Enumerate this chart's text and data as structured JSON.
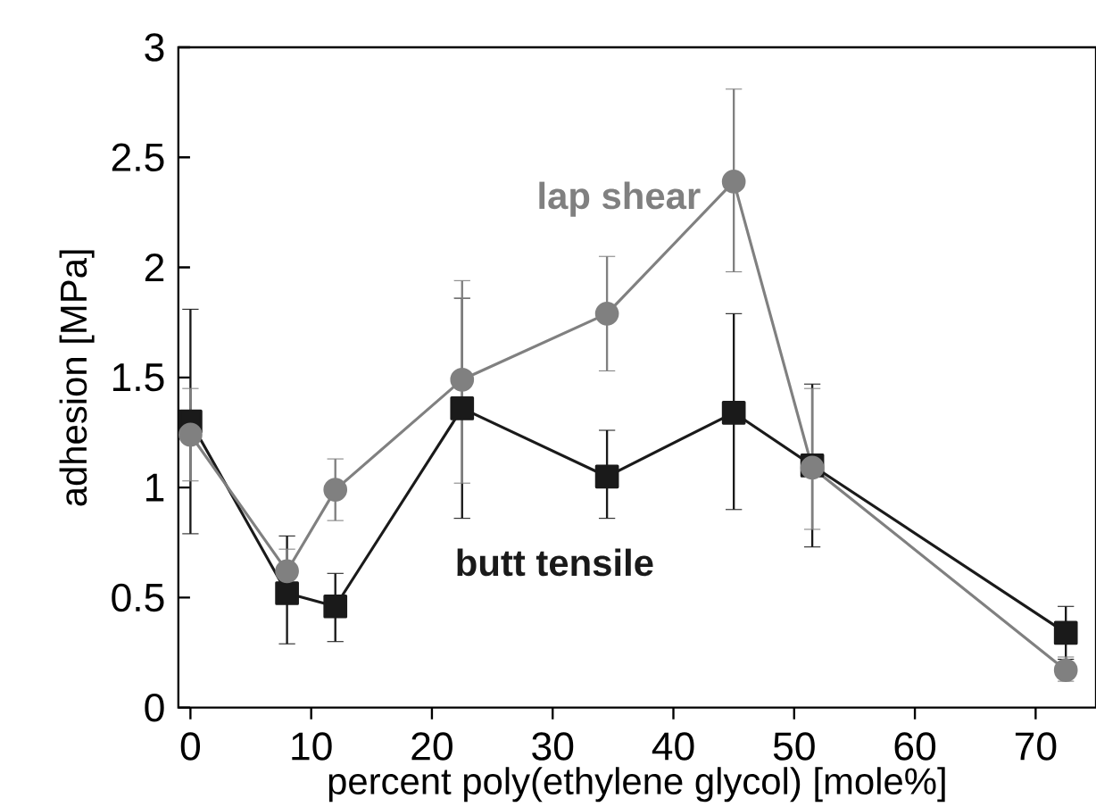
{
  "chart_data": {
    "type": "line",
    "xlabel": "percent poly(ethylene glycol) [mole%]",
    "ylabel": "adhesion [MPa]",
    "x": [
      0,
      8,
      12,
      22.5,
      34.5,
      45,
      51.5,
      72.5
    ],
    "series": [
      {
        "name": "lap shear",
        "color": "#808080",
        "marker": "circle",
        "values": [
          1.24,
          0.62,
          0.99,
          1.49,
          1.79,
          2.39,
          1.09,
          0.17
        ],
        "errors": [
          [
            1.03,
            1.45
          ],
          [
            0.55,
            0.72
          ],
          [
            0.85,
            1.13
          ],
          [
            1.02,
            1.94
          ],
          [
            1.53,
            2.05
          ],
          [
            1.98,
            2.81
          ],
          [
            0.81,
            1.45
          ],
          [
            0.12,
            0.23
          ]
        ]
      },
      {
        "name": "butt tensile",
        "color": "#1a1a1a",
        "marker": "square",
        "values": [
          1.3,
          0.52,
          0.46,
          1.36,
          1.05,
          1.34,
          1.1,
          0.34
        ],
        "errors": [
          [
            0.79,
            1.81
          ],
          [
            0.29,
            0.78
          ],
          [
            0.3,
            0.61
          ],
          [
            0.86,
            1.86
          ],
          [
            0.86,
            1.26
          ],
          [
            0.9,
            1.79
          ],
          [
            0.73,
            1.47
          ],
          [
            0.22,
            0.46
          ]
        ]
      }
    ],
    "xlim": [
      -1,
      75
    ],
    "ylim": [
      0,
      3
    ],
    "xticks": [
      0,
      10,
      20,
      30,
      40,
      50,
      60,
      70
    ],
    "yticks": [
      0,
      0.5,
      1,
      1.5,
      2,
      2.5,
      3
    ],
    "grid": false,
    "legend": false,
    "line_style": "solid"
  }
}
